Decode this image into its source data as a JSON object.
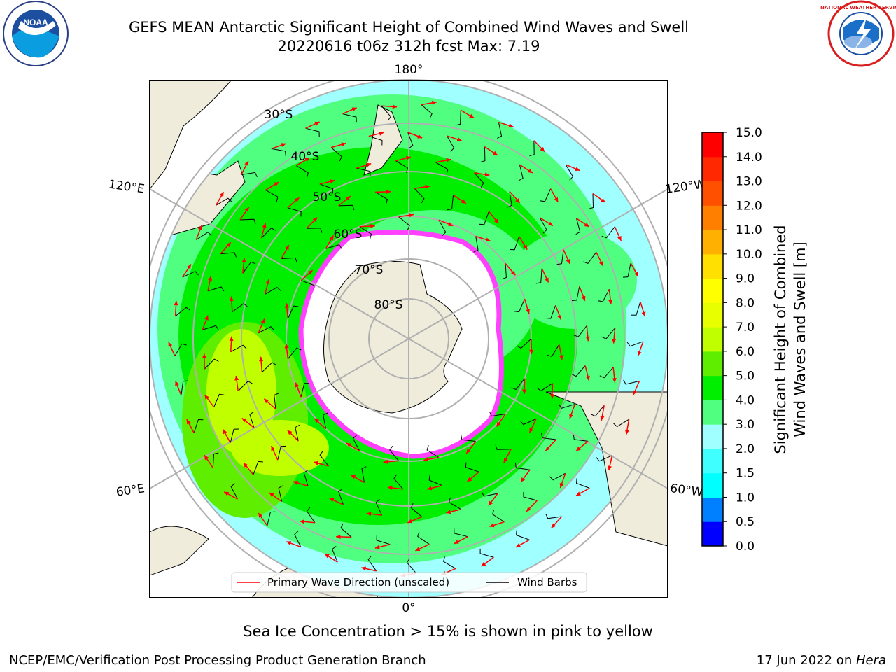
{
  "title": {
    "line1": "GEFS MEAN Antarctic Significant Height of Combined Wind Waves and Swell",
    "line2": "20220616 t06z 312h fcst   Max: 7.19"
  },
  "logos": {
    "left": "NOAA",
    "right": "NATIONAL WEATHER SERVICE"
  },
  "map": {
    "projection": "south-polar-stereographic",
    "longitude_labels": [
      "180°",
      "120°E",
      "120°W",
      "60°E",
      "60°W",
      "0°"
    ],
    "latitude_labels": [
      "30°S",
      "40°S",
      "50°S",
      "60°S",
      "70°S",
      "80°S"
    ]
  },
  "legend": {
    "items": [
      {
        "label": "Primary Wave Direction (unscaled)",
        "color": "#ff0000"
      },
      {
        "label": "Wind Barbs",
        "color": "#000000"
      }
    ]
  },
  "colorbar": {
    "label_line1": "Significant Height of Combined",
    "label_line2": "Wind Waves and Swell [m]",
    "ticks": [
      "0.0",
      "0.5",
      "1.0",
      "1.5",
      "2.0",
      "3.0",
      "4.0",
      "5.0",
      "6.0",
      "7.0",
      "8.0",
      "9.0",
      "10.0",
      "11.0",
      "12.0",
      "13.0",
      "14.0",
      "15.0"
    ],
    "colors": [
      "#0000ff",
      "#0080ff",
      "#00ffff",
      "#40ffff",
      "#a0ffff",
      "#50ff80",
      "#00ee00",
      "#60ee00",
      "#c0ff00",
      "#e8ff00",
      "#ffff00",
      "#ffe000",
      "#ffb000",
      "#ff8000",
      "#ff5000",
      "#ff2800",
      "#ff0000"
    ]
  },
  "chart_data": {
    "type": "heatmap",
    "variable": "Significant Height of Combined Wind Waves and Swell",
    "unit": "m",
    "max_value": 7.19,
    "levels": [
      0.0,
      0.5,
      1.0,
      1.5,
      2.0,
      3.0,
      4.0,
      5.0,
      6.0,
      7.0,
      8.0,
      9.0,
      10.0,
      11.0,
      12.0,
      13.0,
      14.0,
      15.0
    ]
  },
  "footnote": "Sea Ice Concentration > 15% is shown in pink to yellow",
  "credits": {
    "left": "NCEP/EMC/Verification Post Processing Product Generation Branch",
    "date": "17 Jun 2022 on ",
    "machine": "Hera"
  }
}
